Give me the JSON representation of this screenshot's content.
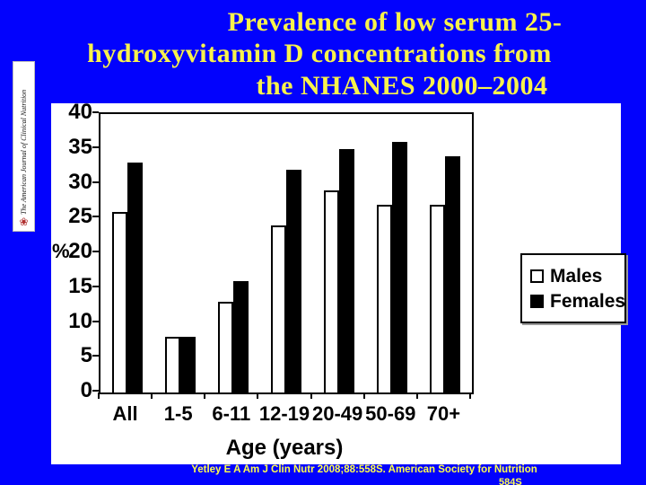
{
  "title": {
    "line1": "Prevalence of low serum 25-",
    "line2": "hydroxyvitamin D concentrations from",
    "line3": "the NHANES 2000–2004"
  },
  "journal": {
    "name": "The American Journal of Clinical Nutrition",
    "logo_icon": "asn-flower-emblem"
  },
  "footer": {
    "citation": "Yetley E A Am J Clin Nutr 2008;88:558S. American Society for Nutrition",
    "page_partial": "584S"
  },
  "colors": {
    "background": "#0202FD",
    "title_text": "#F8F24C",
    "footer_text": "#FFFF4D",
    "panel": "#FFFFFF",
    "males_bar": "#FFFFFF",
    "females_bar": "#000000"
  },
  "chart_data": {
    "type": "bar",
    "categories": [
      "All",
      "1-5",
      "6-11",
      "12-19",
      "20-49",
      "50-69",
      "70+"
    ],
    "series": [
      {
        "name": "Males",
        "color": "#FFFFFF",
        "values": [
          26,
          8,
          13,
          24,
          29,
          27,
          27
        ]
      },
      {
        "name": "Females",
        "color": "#000000",
        "values": [
          33,
          8,
          16,
          32,
          35,
          36,
          34
        ]
      }
    ],
    "title": "",
    "xlabel": "Age (years)",
    "ylabel": "%",
    "ylim": [
      0,
      40
    ],
    "yticks": [
      0,
      5,
      10,
      15,
      20,
      25,
      30,
      35,
      40
    ],
    "grid": false,
    "legend_position": "right"
  }
}
